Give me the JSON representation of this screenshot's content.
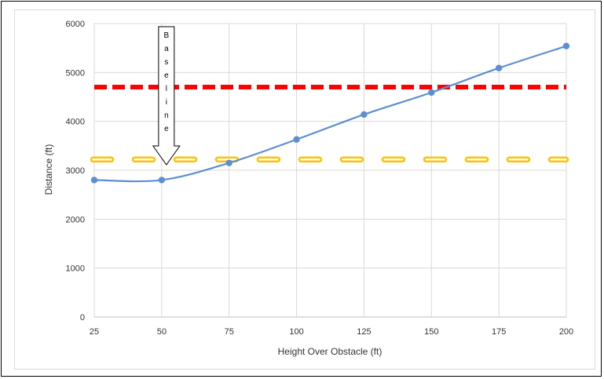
{
  "chart_data": {
    "type": "line",
    "x": [
      25,
      50,
      75,
      100,
      125,
      150,
      175,
      200
    ],
    "series": [
      {
        "values": [
          2800,
          2800,
          3150,
          3630,
          4140,
          4590,
          5090,
          5540
        ],
        "color": "#5b8fd0"
      }
    ],
    "reference_lines": [
      {
        "y": 4700,
        "color": "#ff0000",
        "style": "dashed"
      },
      {
        "y": 3220,
        "color": "#ffc000",
        "style": "dashed-outline"
      }
    ],
    "xlabel": "Height Over Obstacle (ft)",
    "ylabel": "Distance (ft)",
    "xticks": [
      "25",
      "50",
      "75",
      "100",
      "125",
      "150",
      "175",
      "200"
    ],
    "yticks": [
      "0",
      "1000",
      "2000",
      "3000",
      "4000",
      "5000",
      "6000"
    ],
    "xlim": [
      25,
      200
    ],
    "ylim": [
      0,
      6000
    ],
    "grid": true,
    "annotation": {
      "text": "Baseline",
      "x": 50,
      "shape": "down-arrow"
    }
  }
}
